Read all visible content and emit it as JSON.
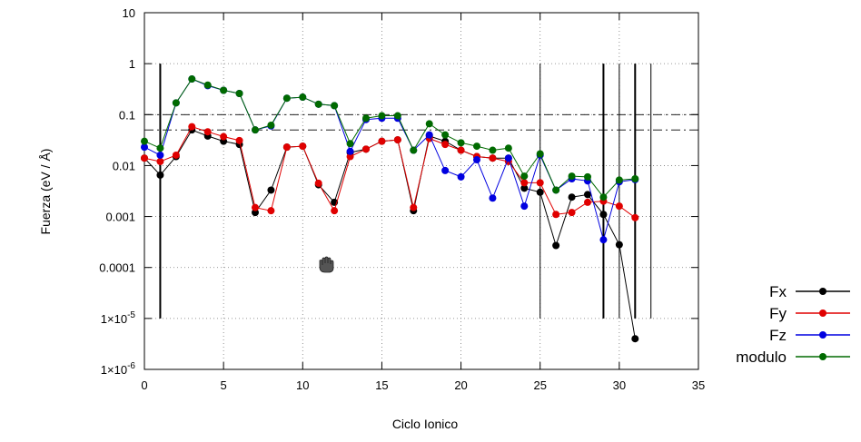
{
  "chart_data": {
    "type": "line",
    "xlabel": "Ciclo Ionico",
    "ylabel": "Fuerza (eV / Å)",
    "title": "",
    "y_scale": "log",
    "xlim": [
      0,
      35
    ],
    "ylim": [
      1e-06,
      10
    ],
    "x_ticks": [
      0,
      5,
      10,
      15,
      20,
      25,
      30,
      35
    ],
    "y_ticks": [
      {
        "value": 10,
        "label": "10"
      },
      {
        "value": 1,
        "label": "1"
      },
      {
        "value": 0.1,
        "label": "0.1"
      },
      {
        "value": 0.01,
        "label": "0.01"
      },
      {
        "value": 0.001,
        "label": "0.001"
      },
      {
        "value": 0.0001,
        "label": "0.0001"
      },
      {
        "value": 1e-05,
        "label": "1×10",
        "exp": "-5"
      },
      {
        "value": 1e-06,
        "label": "1×10",
        "exp": "-6"
      }
    ],
    "grid": true,
    "legend_position": "bottom-right outside",
    "reference_lines": [
      0.05,
      0.1
    ],
    "vertical_lines": [
      {
        "x": 1,
        "ymin": 1e-05,
        "ymax": 1,
        "weight": "thick"
      },
      {
        "x": 25,
        "ymin": 1e-05,
        "ymax": 1,
        "weight": "thin"
      },
      {
        "x": 29,
        "ymin": 1e-05,
        "ymax": 1,
        "weight": "thick"
      },
      {
        "x": 30,
        "ymin": 1e-05,
        "ymax": 1,
        "weight": "thin"
      },
      {
        "x": 31,
        "ymin": 1e-05,
        "ymax": 1,
        "weight": "thick"
      },
      {
        "x": 32,
        "ymin": 1e-05,
        "ymax": 1,
        "weight": "thin"
      }
    ],
    "x": [
      0,
      1,
      2,
      3,
      4,
      5,
      6,
      7,
      8,
      9,
      10,
      11,
      12,
      13,
      14,
      15,
      16,
      17,
      18,
      19,
      20,
      21,
      22,
      23,
      24,
      25,
      26,
      27,
      28,
      29,
      30,
      31
    ],
    "series": [
      {
        "name": "Fx",
        "color": "#000000",
        "values": [
          0.014,
          0.0065,
          0.015,
          0.05,
          0.038,
          0.03,
          0.026,
          0.0012,
          0.0033,
          0.023,
          0.024,
          0.0042,
          0.0019,
          0.018,
          0.021,
          0.03,
          0.032,
          0.0013,
          0.038,
          0.03,
          0.02,
          0.015,
          0.014,
          0.014,
          0.0036,
          0.003,
          0.00027,
          0.0024,
          0.0027,
          0.0011,
          0.00028,
          4e-06
        ]
      },
      {
        "name": "Fy",
        "color": "#e00000",
        "values": [
          0.014,
          0.012,
          0.016,
          0.058,
          0.046,
          0.037,
          0.031,
          0.0015,
          0.0013,
          0.023,
          0.024,
          0.0045,
          0.0013,
          0.015,
          0.021,
          0.03,
          0.032,
          0.0015,
          0.034,
          0.026,
          0.02,
          0.015,
          0.014,
          0.012,
          0.0046,
          0.0046,
          0.0011,
          0.0012,
          0.0019,
          0.002,
          0.0016,
          0.00095
        ]
      },
      {
        "name": "Fz",
        "color": "#0000e0",
        "values": [
          0.023,
          0.016,
          0.17,
          0.5,
          0.37,
          0.3,
          0.26,
          0.05,
          0.06,
          0.21,
          0.22,
          0.16,
          0.15,
          0.019,
          0.08,
          0.085,
          0.085,
          0.02,
          0.04,
          0.008,
          0.006,
          0.013,
          0.0023,
          0.014,
          0.0016,
          0.016,
          0.0033,
          0.0055,
          0.005,
          0.00035,
          0.0048,
          0.0053
        ]
      },
      {
        "name": "modulo",
        "color": "#006a00",
        "values": [
          0.03,
          0.022,
          0.17,
          0.5,
          0.38,
          0.3,
          0.26,
          0.05,
          0.062,
          0.21,
          0.22,
          0.16,
          0.15,
          0.027,
          0.085,
          0.095,
          0.095,
          0.02,
          0.066,
          0.04,
          0.028,
          0.024,
          0.02,
          0.022,
          0.0062,
          0.017,
          0.0033,
          0.0062,
          0.006,
          0.0024,
          0.0052,
          0.0055
        ]
      }
    ]
  }
}
